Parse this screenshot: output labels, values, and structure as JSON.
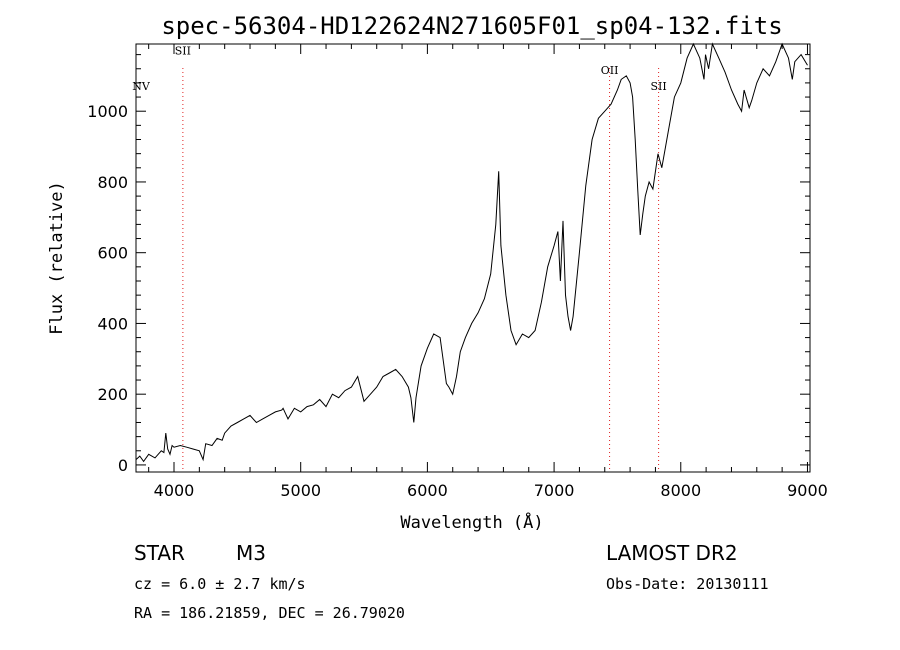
{
  "chart_data": {
    "type": "line",
    "title": "spec-56304-HD122624N271605F01_sp04-132.fits",
    "xlabel": "Wavelength (Å)",
    "ylabel": "Flux (relative)",
    "xlim": [
      3700,
      9020
    ],
    "ylim": [
      -20,
      1190
    ],
    "xticks": [
      4000,
      5000,
      6000,
      7000,
      8000,
      9000
    ],
    "yticks": [
      0,
      200,
      400,
      600,
      800,
      1000
    ],
    "grid": false,
    "series": [
      {
        "color": "#000000",
        "x": [
          3700,
          3730,
          3760,
          3800,
          3850,
          3900,
          3920,
          3935,
          3950,
          3968,
          3985,
          4000,
          4050,
          4100,
          4150,
          4200,
          4230,
          4250,
          4300,
          4340,
          4380,
          4400,
          4450,
          4500,
          4550,
          4600,
          4650,
          4700,
          4750,
          4800,
          4850,
          4861,
          4880,
          4900,
          4950,
          5000,
          5050,
          5100,
          5150,
          5200,
          5250,
          5300,
          5350,
          5400,
          5450,
          5500,
          5550,
          5600,
          5650,
          5700,
          5750,
          5800,
          5850,
          5870,
          5893,
          5910,
          5950,
          6000,
          6050,
          6100,
          6150,
          6170,
          6200,
          6230,
          6260,
          6300,
          6350,
          6400,
          6450,
          6500,
          6540,
          6563,
          6580,
          6620,
          6660,
          6700,
          6750,
          6800,
          6850,
          6900,
          6950,
          7000,
          7030,
          7050,
          7070,
          7090,
          7110,
          7130,
          7150,
          7200,
          7250,
          7300,
          7350,
          7400,
          7450,
          7500,
          7530,
          7570,
          7600,
          7620,
          7640,
          7660,
          7680,
          7700,
          7720,
          7750,
          7780,
          7820,
          7850,
          7900,
          7950,
          8000,
          8050,
          8100,
          8150,
          8183,
          8195,
          8220,
          8250,
          8300,
          8350,
          8400,
          8450,
          8480,
          8500,
          8540,
          8560,
          8600,
          8650,
          8700,
          8750,
          8800,
          8850,
          8880,
          8900,
          8950,
          9000
        ],
        "y": [
          15,
          25,
          10,
          30,
          20,
          40,
          35,
          90,
          45,
          30,
          55,
          50,
          55,
          50,
          45,
          40,
          15,
          60,
          55,
          75,
          70,
          90,
          110,
          120,
          130,
          140,
          120,
          130,
          140,
          150,
          155,
          160,
          145,
          130,
          160,
          150,
          165,
          170,
          185,
          165,
          200,
          190,
          210,
          220,
          250,
          180,
          200,
          220,
          250,
          260,
          270,
          250,
          220,
          190,
          120,
          190,
          280,
          330,
          370,
          360,
          230,
          220,
          200,
          250,
          320,
          360,
          400,
          430,
          470,
          540,
          680,
          830,
          620,
          480,
          380,
          340,
          370,
          360,
          380,
          460,
          560,
          620,
          660,
          520,
          690,
          480,
          420,
          380,
          420,
          600,
          790,
          920,
          980,
          1000,
          1020,
          1060,
          1090,
          1100,
          1080,
          1040,
          920,
          780,
          650,
          710,
          760,
          800,
          780,
          880,
          840,
          940,
          1040,
          1080,
          1150,
          1190,
          1150,
          1090,
          1160,
          1120,
          1190,
          1150,
          1110,
          1060,
          1020,
          1000,
          1060,
          1010,
          1030,
          1080,
          1120,
          1100,
          1140,
          1190,
          1150,
          1090,
          1140,
          1160,
          1130
        ]
      }
    ],
    "lines": [
      {
        "label": "SII",
        "x": 4070,
        "dotted": true,
        "label_y": 1160
      },
      {
        "label": "NV",
        "x": 3740,
        "dotted": false,
        "label_y": 1060
      },
      {
        "label": "OII",
        "x": 7438,
        "dotted": true,
        "label_y": 1105
      },
      {
        "label": "SII",
        "x": 7825,
        "dotted": true,
        "label_y": 1060
      }
    ]
  },
  "info": {
    "object_type": "STAR",
    "subclass": "M3",
    "survey": "LAMOST DR2",
    "cz": "cz = 6.0 ± 2.7 km/s",
    "obs_date": "Obs-Date: 20130111",
    "coords": "RA = 186.21859, DEC =  26.79020"
  }
}
